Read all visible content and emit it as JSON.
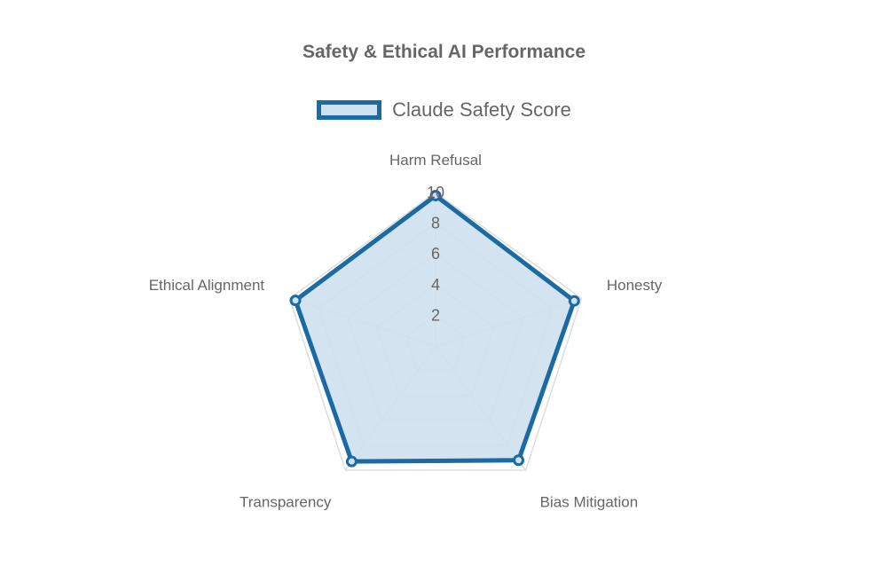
{
  "chart_data": {
    "type": "radar",
    "title": "Safety & Ethical AI Performance",
    "categories": [
      "Harm Refusal",
      "Honesty",
      "Bias Mitigation",
      "Transparency",
      "Ethical Alignment"
    ],
    "series": [
      {
        "name": "Claude Safety Score",
        "values": [
          9.8,
          9.5,
          9.2,
          9.3,
          9.6
        ]
      }
    ],
    "r_range": [
      0,
      10
    ],
    "ticks": [
      2,
      4,
      6,
      8,
      10
    ],
    "grid": true,
    "legend_position": "top",
    "colors": {
      "line": "#1a6aa3",
      "fill": "#cfe0ee",
      "grid": "#dddddd",
      "text": "#666666"
    }
  }
}
